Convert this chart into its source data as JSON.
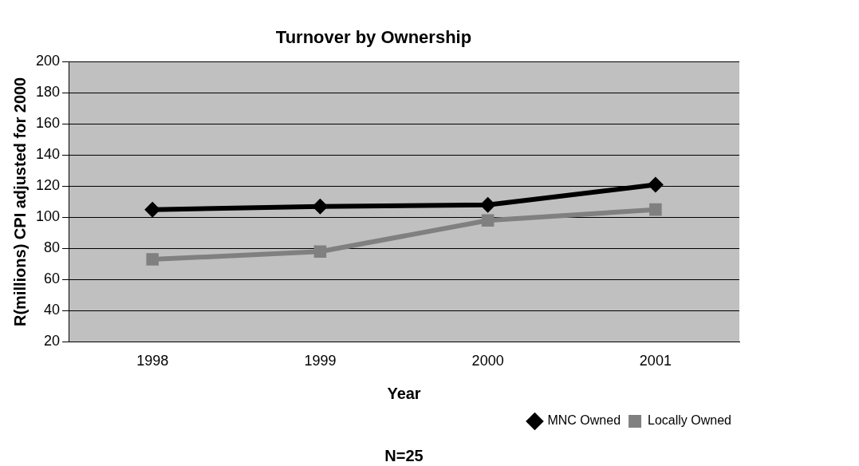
{
  "chart_data": {
    "type": "line",
    "title": "Turnover by Ownership",
    "xlabel": "Year",
    "ylabel": "R(millions) CPI adjusted for 2000",
    "annotations": [
      "N=25"
    ],
    "categories": [
      "1998",
      "1999",
      "2000",
      "2001"
    ],
    "series": [
      {
        "name": "MNC Owned",
        "color": "#000000",
        "marker": "diamond",
        "values": [
          105,
          107,
          108,
          121
        ]
      },
      {
        "name": "Locally Owned",
        "color": "#808080",
        "marker": "square",
        "values": [
          73,
          78,
          98,
          105
        ]
      }
    ],
    "ylim": [
      20,
      200
    ],
    "yticks": [
      20,
      40,
      60,
      80,
      100,
      120,
      140,
      160,
      180,
      200
    ],
    "grid": "y",
    "legend": "bottom right",
    "line_style": "solid"
  }
}
